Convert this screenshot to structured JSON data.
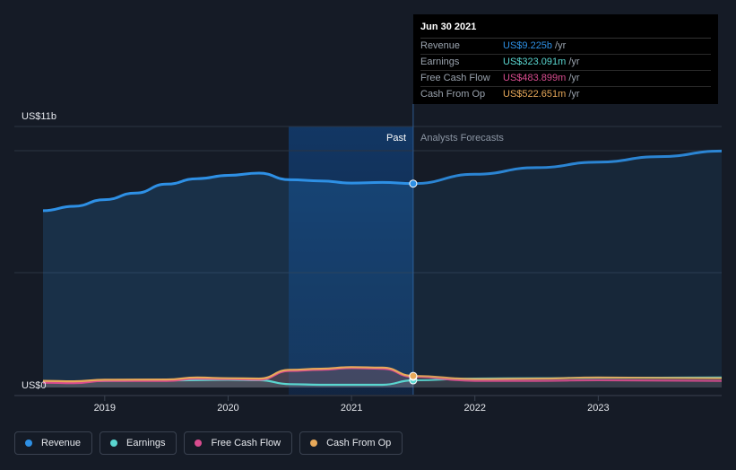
{
  "chart_data": {
    "type": "area",
    "y_axis": {
      "top_label": "US$11b",
      "bottom_label": "US$0",
      "ylim": [
        0,
        11
      ]
    },
    "x_ticks": [
      "2019",
      "2020",
      "2021",
      "2022",
      "2023"
    ],
    "regions": {
      "past_label": "Past",
      "forecast_label": "Analysts Forecasts",
      "past_end": 2021.5
    },
    "series": [
      {
        "name": "Revenue",
        "color": "#2e90e5",
        "unit": "US$b",
        "points": [
          [
            2018.5,
            8.0
          ],
          [
            2018.75,
            8.2
          ],
          [
            2019.0,
            8.5
          ],
          [
            2019.25,
            8.8
          ],
          [
            2019.5,
            9.2
          ],
          [
            2019.75,
            9.45
          ],
          [
            2020.0,
            9.6
          ],
          [
            2020.25,
            9.7
          ],
          [
            2020.5,
            9.4
          ],
          [
            2020.75,
            9.35
          ],
          [
            2021.0,
            9.25
          ],
          [
            2021.25,
            9.28
          ],
          [
            2021.5,
            9.225
          ]
        ],
        "forecast": [
          [
            2021.5,
            9.225
          ],
          [
            2022.0,
            9.65
          ],
          [
            2022.5,
            9.95
          ],
          [
            2023.0,
            10.2
          ],
          [
            2023.5,
            10.45
          ],
          [
            2024.0,
            10.7
          ]
        ]
      },
      {
        "name": "Earnings",
        "color": "#5ad6d0",
        "unit": "US$b",
        "points": [
          [
            2018.5,
            0.25
          ],
          [
            2018.75,
            0.28
          ],
          [
            2019.0,
            0.3
          ],
          [
            2019.5,
            0.32
          ],
          [
            2020.0,
            0.35
          ],
          [
            2020.25,
            0.33
          ],
          [
            2020.5,
            0.15
          ],
          [
            2020.75,
            0.12
          ],
          [
            2021.0,
            0.12
          ],
          [
            2021.25,
            0.12
          ],
          [
            2021.5,
            0.323
          ]
        ],
        "forecast": [
          [
            2021.5,
            0.323
          ],
          [
            2022.0,
            0.4
          ],
          [
            2022.5,
            0.42
          ],
          [
            2023.0,
            0.44
          ],
          [
            2024.0,
            0.45
          ]
        ]
      },
      {
        "name": "Free Cash Flow",
        "color": "#d84c8f",
        "unit": "US$b",
        "points": [
          [
            2018.5,
            0.22
          ],
          [
            2018.75,
            0.2
          ],
          [
            2019.0,
            0.3
          ],
          [
            2019.5,
            0.3
          ],
          [
            2019.75,
            0.4
          ],
          [
            2020.0,
            0.38
          ],
          [
            2020.25,
            0.35
          ],
          [
            2020.5,
            0.75
          ],
          [
            2020.75,
            0.8
          ],
          [
            2021.0,
            0.88
          ],
          [
            2021.25,
            0.85
          ],
          [
            2021.5,
            0.484
          ]
        ],
        "forecast": [
          [
            2021.5,
            0.484
          ],
          [
            2022.0,
            0.3
          ],
          [
            2022.5,
            0.3
          ],
          [
            2023.0,
            0.33
          ],
          [
            2024.0,
            0.3
          ]
        ]
      },
      {
        "name": "Cash From Op",
        "color": "#e8a95a",
        "unit": "US$b",
        "points": [
          [
            2018.5,
            0.3
          ],
          [
            2018.75,
            0.28
          ],
          [
            2019.0,
            0.35
          ],
          [
            2019.5,
            0.36
          ],
          [
            2019.75,
            0.45
          ],
          [
            2020.0,
            0.42
          ],
          [
            2020.25,
            0.4
          ],
          [
            2020.5,
            0.8
          ],
          [
            2020.75,
            0.85
          ],
          [
            2021.0,
            0.92
          ],
          [
            2021.25,
            0.9
          ],
          [
            2021.5,
            0.523
          ]
        ],
        "forecast": [
          [
            2021.5,
            0.523
          ],
          [
            2022.0,
            0.38
          ],
          [
            2022.5,
            0.4
          ],
          [
            2023.0,
            0.45
          ],
          [
            2024.0,
            0.42
          ]
        ]
      }
    ]
  },
  "tooltip": {
    "date": "Jun 30 2021",
    "rows": [
      {
        "label": "Revenue",
        "value": "US$9.225b",
        "unit": "/yr",
        "color": "#2e90e5"
      },
      {
        "label": "Earnings",
        "value": "US$323.091m",
        "unit": "/yr",
        "color": "#5ad6d0"
      },
      {
        "label": "Free Cash Flow",
        "value": "US$483.899m",
        "unit": "/yr",
        "color": "#d84c8f"
      },
      {
        "label": "Cash From Op",
        "value": "US$522.651m",
        "unit": "/yr",
        "color": "#e8a95a"
      }
    ]
  },
  "legend": [
    {
      "label": "Revenue",
      "color": "#2e90e5"
    },
    {
      "label": "Earnings",
      "color": "#5ad6d0"
    },
    {
      "label": "Free Cash Flow",
      "color": "#d84c8f"
    },
    {
      "label": "Cash From Op",
      "color": "#e8a95a"
    }
  ]
}
